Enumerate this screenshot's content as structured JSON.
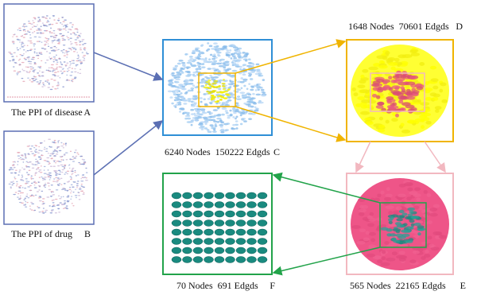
{
  "panels": [
    {
      "label": "The PPI of disease",
      "letter": "A"
    },
    {
      "label": "The PPI of drug",
      "letter": "B"
    },
    {
      "label": "6240 Nodes  150222 Edgds",
      "letter": "C"
    },
    {
      "label": "1648 Nodes  70601 Edgds",
      "letter": "D"
    },
    {
      "label": "565 Nodes  22165 Edgds",
      "letter": "E"
    },
    {
      "label": "70 Nodes  691 Edgds",
      "letter": "F"
    }
  ]
}
